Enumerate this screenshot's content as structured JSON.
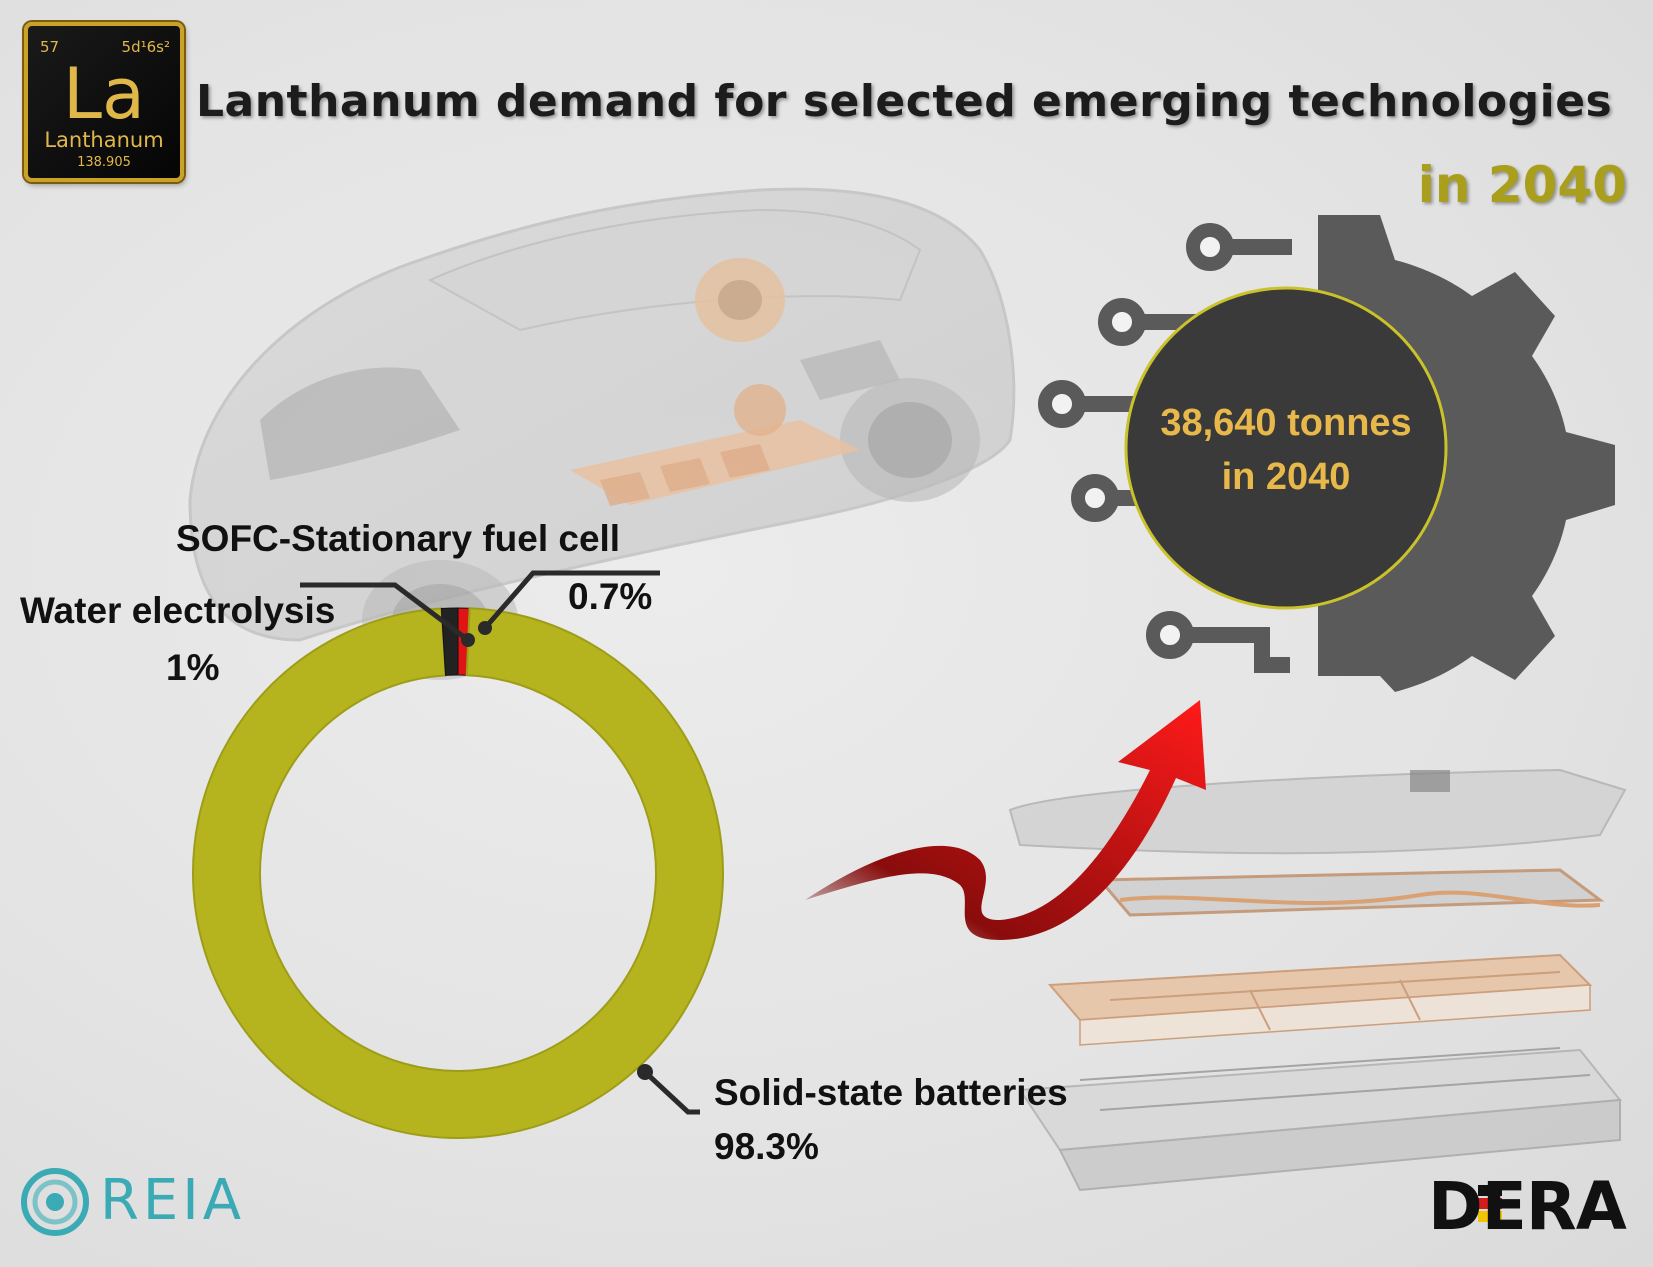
{
  "header": {
    "title": "Lanthanum demand for selected emerging technologies",
    "subtitle": "in 2040"
  },
  "element_badge": {
    "atomic_number": "57",
    "configuration": "5d¹6s²",
    "symbol": "La",
    "name": "Lanthanum",
    "atomic_mass": "138.905"
  },
  "total_demand": {
    "line1": "38,640 tonnes",
    "line2": "in 2040"
  },
  "chart_data": {
    "type": "pie",
    "style": "donut",
    "start_angle": "top, clockwise",
    "total": "38,640 tonnes in 2040",
    "slices": [
      {
        "label": "Solid-state batteries",
        "value": 98.3,
        "display": "98.3%",
        "color": "#b5b41f"
      },
      {
        "label": "Water electrolysis",
        "value": 1.0,
        "display": "1%",
        "color": "#222222"
      },
      {
        "label": "SOFC-Stationary fuel cell",
        "value": 0.7,
        "display": "0.7%",
        "color": "#e01414"
      }
    ]
  },
  "logos": {
    "left": "REIA",
    "right": "DERA"
  },
  "colors": {
    "accent_gold": "#a99f1c",
    "donut_main": "#b5b41f",
    "circle_fill": "#3a3a3a",
    "total_text": "#e8b94a",
    "arrow_red": "#e01414"
  },
  "icons": [
    "car-illustration",
    "battery-pack-illustration",
    "gear-circuit-icon",
    "growth-arrow-icon"
  ]
}
